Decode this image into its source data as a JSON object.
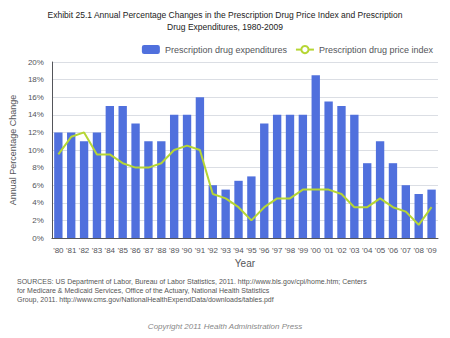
{
  "chart_data": {
    "type": "bar",
    "title": "Exhibit 25.1 Annual Percentage Changes in the Prescription Drug Price Index and Prescription\nDrug Expenditures, 1980-2009",
    "xlabel": "Year",
    "ylabel": "Annual Percentage Change",
    "categories": [
      "'80",
      "'81",
      "'82",
      "'83",
      "'84",
      "'85",
      "'86",
      "'87",
      "'88",
      "'89",
      "'90",
      "'91",
      "'92",
      "'93",
      "'94",
      "'95",
      "'96",
      "'97",
      "'98",
      "'99",
      "'00",
      "'01",
      "'02",
      "'03",
      "'04",
      "'05",
      "'06",
      "'07",
      "'08",
      "'09"
    ],
    "series": [
      {
        "name": "Prescription drug expenditures",
        "type": "bar",
        "values": [
          12.0,
          12.0,
          11.0,
          12.0,
          15.0,
          15.0,
          13.0,
          11.0,
          11.0,
          14.0,
          14.0,
          16.0,
          6.0,
          5.5,
          6.5,
          7.0,
          13.0,
          14.0,
          14.0,
          14.0,
          18.5,
          15.5,
          15.0,
          14.0,
          8.5,
          11.0,
          8.5,
          6.0,
          5.0,
          5.5
        ]
      },
      {
        "name": "Prescription drug price index",
        "type": "line",
        "values": [
          9.5,
          11.5,
          12.0,
          9.5,
          9.5,
          8.5,
          8.0,
          8.0,
          8.5,
          10.0,
          10.5,
          10.0,
          5.0,
          4.5,
          3.5,
          2.0,
          3.5,
          4.5,
          4.5,
          5.5,
          5.5,
          5.5,
          5.0,
          3.5,
          3.5,
          4.5,
          3.5,
          3.0,
          1.5,
          3.5
        ]
      }
    ],
    "ylim": [
      0,
      20
    ],
    "yticks": [
      {
        "value": 0,
        "label": "0%"
      },
      {
        "value": 2,
        "label": "2%"
      },
      {
        "value": 4,
        "label": "4%"
      },
      {
        "value": 6,
        "label": "6%"
      },
      {
        "value": 8,
        "label": "8%"
      },
      {
        "value": 10,
        "label": "10%"
      },
      {
        "value": 12,
        "label": "12%"
      },
      {
        "value": 14,
        "label": "14%"
      },
      {
        "value": 16,
        "label": "16%"
      },
      {
        "value": 18,
        "label": "18%"
      },
      {
        "value": 20,
        "label": "20%"
      }
    ],
    "grid": true,
    "legend": "upper right",
    "annotations": [
      "SOURCES: US Department of Labor, Bureau of Labor Statistics, 2011. http://www.bls.gov/cpi/home.htm; Centers for Medicare & Medicaid Services, Office of the Actuary, National Health Statistics\nGroup, 2011. http://www.cms.gov/NationalHealthExpendData/downloads/tables.pdf",
      "Copyright 2011 Health Administration Press"
    ]
  }
}
